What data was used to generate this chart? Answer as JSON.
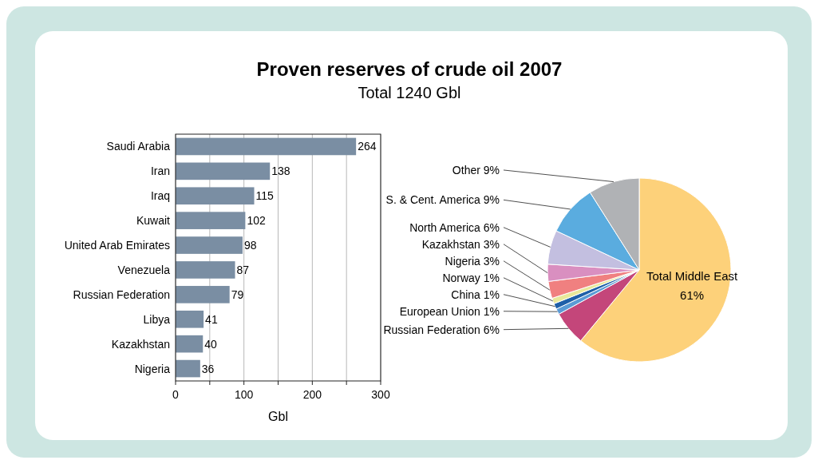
{
  "chart_data": [
    {
      "type": "bar",
      "title": "Proven reserves of crude oil 2007",
      "subtitle": "Total 1240 Gbl",
      "xlabel": "Gbl",
      "orientation": "horizontal",
      "categories": [
        "Saudi Arabia",
        "Iran",
        "Iraq",
        "Kuwait",
        "United Arab Emirates",
        "Venezuela",
        "Russian Federation",
        "Libya",
        "Kazakhstan",
        "Nigeria"
      ],
      "values": [
        264,
        138,
        115,
        102,
        98,
        87,
        79,
        41,
        40,
        36
      ],
      "color": "#7a8ea3",
      "data_labels": true,
      "grid": "x",
      "xlim": [
        0,
        300
      ],
      "xticks": [
        0,
        {
          "value": 50,
          "label": null
        },
        100,
        {
          "value": 150,
          "label": null
        },
        200,
        {
          "value": 250,
          "label": null
        },
        300
      ]
    },
    {
      "type": "pie",
      "categories": [
        "Total Middle East",
        "Russian Federation",
        "European Union",
        "China",
        "Norway",
        "Nigeria",
        "Kazakhstan",
        "North America",
        "S. & Cent. America",
        "Other"
      ],
      "values": [
        61,
        6,
        1,
        1,
        1,
        3,
        3,
        6,
        9,
        9
      ],
      "value_labels": [
        "61%",
        "6%",
        "1%",
        "1%",
        "1%",
        "3%",
        "3%",
        "6%",
        "9%",
        "9%"
      ],
      "colors": [
        "#fdd17a",
        "#c4467a",
        "#5b9bd5",
        "#1f5fa8",
        "#e8e89a",
        "#f08080",
        "#d98fc0",
        "#c3bfe0",
        "#5aacdf",
        "#b0b2b5"
      ]
    }
  ]
}
